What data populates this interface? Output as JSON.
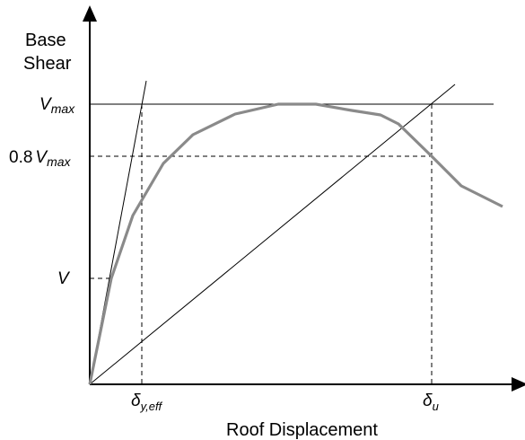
{
  "axes": {
    "y_label_line1": "Base",
    "y_label_line2": "Shear",
    "x_label": "Roof Displacement"
  },
  "labels": {
    "vmax": {
      "main": "V",
      "sub": "max"
    },
    "v08": {
      "prefix": "0.8",
      "main": "V",
      "sub": "max"
    },
    "v": {
      "main": "V"
    },
    "delta_y_eff": {
      "main": "δ",
      "sub": "y,eff"
    },
    "delta_u": {
      "main": "δ",
      "sub": "u"
    }
  },
  "colors": {
    "curve": "#8a8a8a",
    "lines": "#000000"
  }
}
